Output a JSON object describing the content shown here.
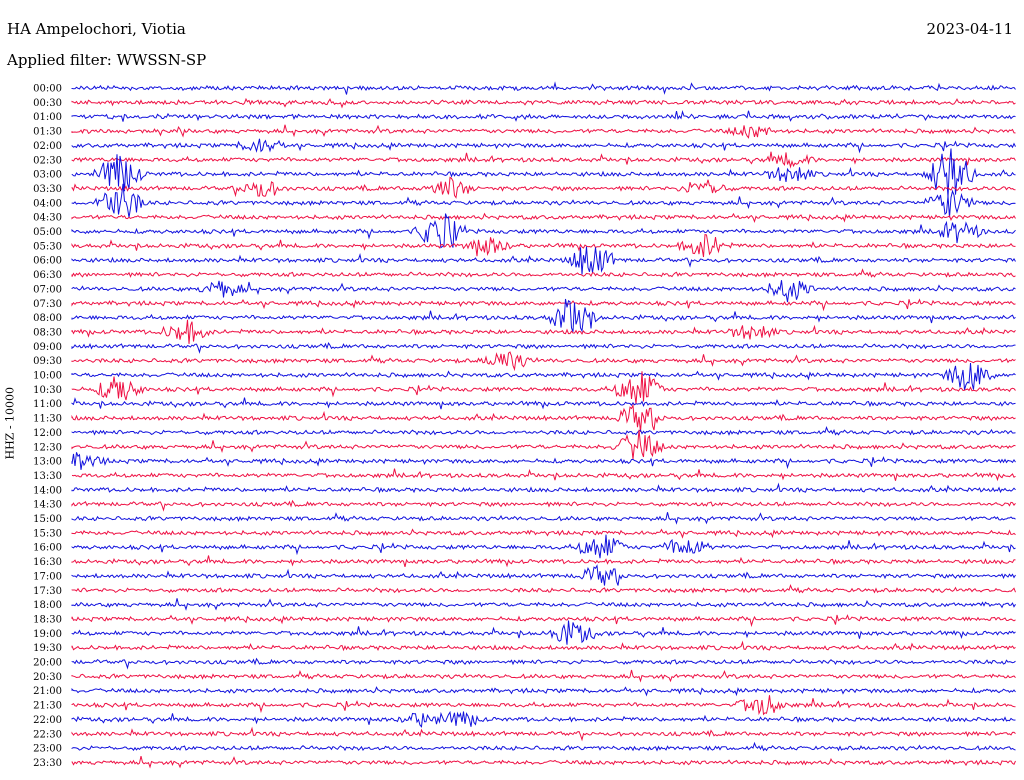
{
  "header": {
    "station": "HA Ampelochori, Viotia",
    "date": "2023-04-11",
    "filter": "Applied filter: WWSSN-SP"
  },
  "chart_data": {
    "type": "line",
    "title": "HA Ampelochori, Viotia",
    "ylabel": "HHZ - 10000",
    "row_labels": [
      "00:00",
      "00:30",
      "01:00",
      "01:30",
      "02:00",
      "02:30",
      "03:00",
      "03:30",
      "04:00",
      "04:30",
      "05:00",
      "05:30",
      "06:00",
      "06:30",
      "07:00",
      "07:30",
      "08:00",
      "08:30",
      "09:00",
      "09:30",
      "10:00",
      "10:30",
      "11:00",
      "11:30",
      "12:00",
      "12:30",
      "13:00",
      "13:30",
      "14:00",
      "14:30",
      "15:00",
      "15:30",
      "16:00",
      "16:30",
      "17:00",
      "17:30",
      "18:00",
      "18:30",
      "19:00",
      "19:30",
      "20:00",
      "20:30",
      "21:00",
      "21:30",
      "22:00",
      "22:30",
      "23:00",
      "23:30"
    ],
    "colors": [
      "#1111dd",
      "#ee1144"
    ],
    "events": [
      {
        "row": 3,
        "x": 0.72,
        "amp": 6
      },
      {
        "row": 4,
        "x": 0.2,
        "amp": 7
      },
      {
        "row": 5,
        "x": 0.76,
        "amp": 6
      },
      {
        "row": 6,
        "x": 0.05,
        "amp": 20
      },
      {
        "row": 6,
        "x": 0.93,
        "amp": 28
      },
      {
        "row": 6,
        "x": 0.76,
        "amp": 9
      },
      {
        "row": 7,
        "x": 0.2,
        "amp": 9
      },
      {
        "row": 7,
        "x": 0.4,
        "amp": 10
      },
      {
        "row": 7,
        "x": 0.67,
        "amp": 9
      },
      {
        "row": 8,
        "x": 0.05,
        "amp": 22
      },
      {
        "row": 8,
        "x": 0.93,
        "amp": 14
      },
      {
        "row": 10,
        "x": 0.39,
        "amp": 20
      },
      {
        "row": 10,
        "x": 0.94,
        "amp": 10
      },
      {
        "row": 11,
        "x": 0.44,
        "amp": 9
      },
      {
        "row": 11,
        "x": 0.67,
        "amp": 12
      },
      {
        "row": 12,
        "x": 0.55,
        "amp": 18
      },
      {
        "row": 14,
        "x": 0.16,
        "amp": 8
      },
      {
        "row": 14,
        "x": 0.76,
        "amp": 12
      },
      {
        "row": 16,
        "x": 0.53,
        "amp": 20
      },
      {
        "row": 17,
        "x": 0.12,
        "amp": 12
      },
      {
        "row": 17,
        "x": 0.72,
        "amp": 8
      },
      {
        "row": 19,
        "x": 0.46,
        "amp": 10
      },
      {
        "row": 21,
        "x": 0.05,
        "amp": 14
      },
      {
        "row": 21,
        "x": 0.6,
        "amp": 20
      },
      {
        "row": 20,
        "x": 0.95,
        "amp": 16
      },
      {
        "row": 23,
        "x": 0.6,
        "amp": 14
      },
      {
        "row": 25,
        "x": 0.6,
        "amp": 16
      },
      {
        "row": 26,
        "x": 0.01,
        "amp": 8
      },
      {
        "row": 32,
        "x": 0.56,
        "amp": 14
      },
      {
        "row": 32,
        "x": 0.65,
        "amp": 10
      },
      {
        "row": 34,
        "x": 0.56,
        "amp": 10
      },
      {
        "row": 38,
        "x": 0.53,
        "amp": 12
      },
      {
        "row": 43,
        "x": 0.73,
        "amp": 12
      },
      {
        "row": 44,
        "x": 0.37,
        "amp": 6
      },
      {
        "row": 44,
        "x": 0.41,
        "amp": 7
      }
    ],
    "grid": false
  }
}
